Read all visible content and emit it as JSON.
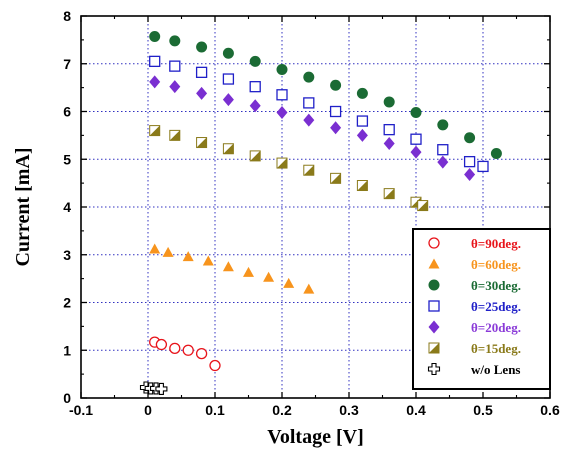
{
  "chart_data": {
    "type": "scatter",
    "title": "",
    "xlabel": "Voltage [V]",
    "ylabel": "Current [mA]",
    "xlim": [
      -0.1,
      0.6
    ],
    "ylim": [
      0,
      8
    ],
    "xticks": [
      "-0.1",
      "0",
      "0.1",
      "0.2",
      "0.3",
      "0.4",
      "0.5",
      "0.6"
    ],
    "yticks": [
      "0",
      "1",
      "2",
      "3",
      "4",
      "5",
      "6",
      "7",
      "8"
    ],
    "grid": "dotted",
    "legend_position": "bottom-right",
    "series": [
      {
        "name": "θ=90deg.",
        "marker": "open-circle",
        "color": "#e8141b",
        "legend_color": "#e8141b",
        "points": [
          [
            0.01,
            1.17
          ],
          [
            0.02,
            1.12
          ],
          [
            0.04,
            1.04
          ],
          [
            0.06,
            1.0
          ],
          [
            0.08,
            0.93
          ],
          [
            0.1,
            0.68
          ]
        ]
      },
      {
        "name": "θ=60deg.",
        "marker": "triangle",
        "color": "#f7941d",
        "legend_color": "#f7941d",
        "points": [
          [
            0.01,
            3.12
          ],
          [
            0.03,
            3.05
          ],
          [
            0.06,
            2.96
          ],
          [
            0.09,
            2.87
          ],
          [
            0.12,
            2.75
          ],
          [
            0.15,
            2.63
          ],
          [
            0.18,
            2.53
          ],
          [
            0.21,
            2.4
          ],
          [
            0.24,
            2.28
          ]
        ]
      },
      {
        "name": "θ=30deg.",
        "marker": "filled-circle",
        "color": "#1b6b34",
        "legend_color": "#1b6b34",
        "points": [
          [
            0.01,
            7.57
          ],
          [
            0.04,
            7.48
          ],
          [
            0.08,
            7.35
          ],
          [
            0.12,
            7.22
          ],
          [
            0.16,
            7.05
          ],
          [
            0.2,
            6.88
          ],
          [
            0.24,
            6.72
          ],
          [
            0.28,
            6.55
          ],
          [
            0.32,
            6.38
          ],
          [
            0.36,
            6.2
          ],
          [
            0.4,
            5.98
          ],
          [
            0.44,
            5.72
          ],
          [
            0.48,
            5.45
          ],
          [
            0.52,
            5.12
          ]
        ]
      },
      {
        "name": "θ=25deg.",
        "marker": "open-square",
        "color": "#2020c8",
        "legend_color": "#2020c8",
        "points": [
          [
            0.01,
            7.05
          ],
          [
            0.04,
            6.95
          ],
          [
            0.08,
            6.82
          ],
          [
            0.12,
            6.68
          ],
          [
            0.16,
            6.52
          ],
          [
            0.2,
            6.35
          ],
          [
            0.24,
            6.18
          ],
          [
            0.28,
            6.0
          ],
          [
            0.32,
            5.8
          ],
          [
            0.36,
            5.62
          ],
          [
            0.4,
            5.42
          ],
          [
            0.44,
            5.2
          ],
          [
            0.48,
            4.95
          ],
          [
            0.5,
            4.85
          ]
        ]
      },
      {
        "name": "θ=20deg.",
        "marker": "diamond",
        "color": "#7a2fd1",
        "legend_color": "#8a3ad8",
        "points": [
          [
            0.01,
            6.62
          ],
          [
            0.04,
            6.52
          ],
          [
            0.08,
            6.38
          ],
          [
            0.12,
            6.25
          ],
          [
            0.16,
            6.12
          ],
          [
            0.2,
            5.98
          ],
          [
            0.24,
            5.82
          ],
          [
            0.28,
            5.66
          ],
          [
            0.32,
            5.5
          ],
          [
            0.36,
            5.33
          ],
          [
            0.4,
            5.15
          ],
          [
            0.44,
            4.94
          ],
          [
            0.48,
            4.68
          ]
        ]
      },
      {
        "name": "θ=15deg.",
        "marker": "half-square",
        "color": "#8a7a1a",
        "legend_color": "#8a7a1a",
        "points": [
          [
            0.01,
            5.6
          ],
          [
            0.04,
            5.5
          ],
          [
            0.08,
            5.35
          ],
          [
            0.12,
            5.22
          ],
          [
            0.16,
            5.07
          ],
          [
            0.2,
            4.92
          ],
          [
            0.24,
            4.77
          ],
          [
            0.28,
            4.6
          ],
          [
            0.32,
            4.45
          ],
          [
            0.36,
            4.28
          ],
          [
            0.4,
            4.1
          ],
          [
            0.41,
            4.03
          ]
        ]
      },
      {
        "name": "w/o Lens",
        "marker": "open-cross",
        "color": "#000000",
        "legend_color": "#000000",
        "points": [
          [
            -0.003,
            0.22
          ],
          [
            0.004,
            0.2
          ],
          [
            0.012,
            0.2
          ],
          [
            0.02,
            0.19
          ]
        ]
      }
    ]
  }
}
